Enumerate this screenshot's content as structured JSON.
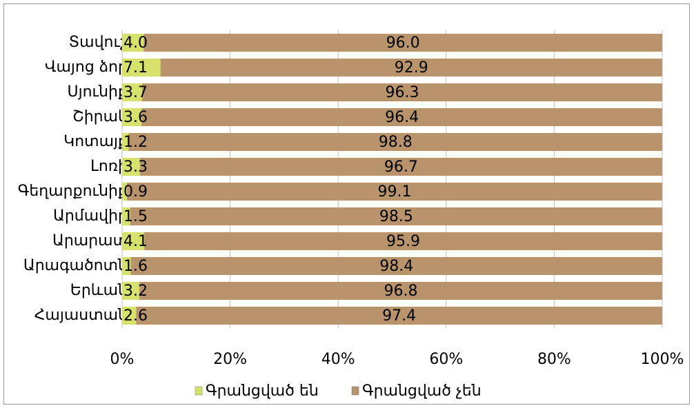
{
  "chart_data": {
    "type": "stacked_barh",
    "categories": [
      "Տավուշ",
      "Վայոց ձոր",
      "Սյունիք",
      "Շիրակ",
      "Կոտայք",
      "Լոռի",
      "Գեղարքունիք",
      "Արմավիր",
      "Արարատ",
      "Արագածոտն",
      "Երևան",
      "Հայաստան"
    ],
    "series": [
      {
        "name": "Գրանցված են",
        "color": "#d6e26c",
        "values": [
          4.0,
          7.1,
          3.7,
          3.6,
          1.2,
          3.3,
          0.9,
          1.5,
          4.1,
          1.6,
          3.2,
          2.6
        ],
        "value_labels": [
          "4.0",
          "7.1",
          "3.7",
          "3.6",
          "1.2",
          "3.3",
          "0.9",
          "1.5",
          "4.1",
          "1.6",
          "3.2",
          "2.6"
        ]
      },
      {
        "name": "Գրանցված չեն",
        "color": "#b8936c",
        "values": [
          96.0,
          92.9,
          96.3,
          96.4,
          98.8,
          96.7,
          99.1,
          98.5,
          95.9,
          98.4,
          96.8,
          97.4
        ],
        "value_labels": [
          "96.0",
          "92.9",
          "96.3",
          "96.4",
          "98.8",
          "96.7",
          "99.1",
          "98.5",
          "95.9",
          "98.4",
          "96.8",
          "97.4"
        ]
      }
    ],
    "xlim": [
      0,
      100
    ],
    "xticks": [
      {
        "value": 0,
        "label": "0%"
      },
      {
        "value": 20,
        "label": "20%"
      },
      {
        "value": 40,
        "label": "40%"
      },
      {
        "value": 60,
        "label": "60%"
      },
      {
        "value": 80,
        "label": "80%"
      },
      {
        "value": 100,
        "label": "100%"
      }
    ],
    "legend": "bottom"
  }
}
